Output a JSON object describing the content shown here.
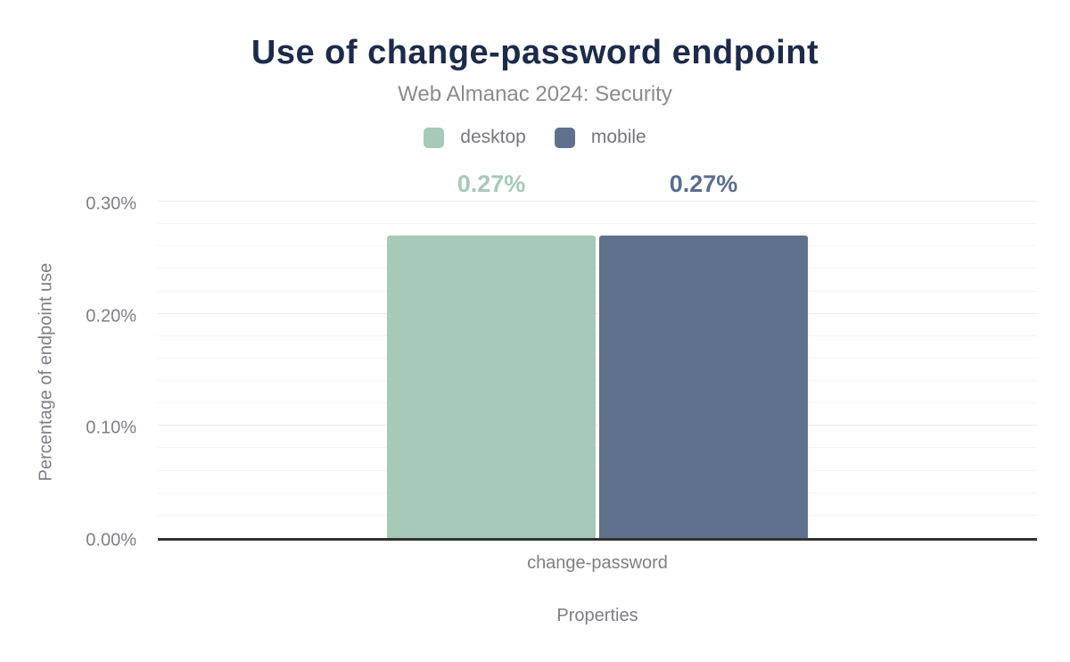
{
  "chart": {
    "title": "Use of change-password endpoint",
    "subtitle": "Web Almanac 2024: Security"
  },
  "colors": {
    "title": "#1c2b4a",
    "subtitle_text": "#8b8b8b",
    "axis_text": "#7e7e86",
    "axis_line": "#333333",
    "gridline_minor": "#f4f4f4",
    "gridline_major": "#ebebeb",
    "desktop": "#a7c9b8",
    "mobile": "#5f718c"
  },
  "chart_data": {
    "type": "bar",
    "title": "Use of change-password endpoint",
    "subtitle": "Web Almanac 2024: Security",
    "categories": [
      "change-password"
    ],
    "series": [
      {
        "name": "desktop",
        "values": [
          0.27
        ],
        "data_labels": [
          "0.27%"
        ],
        "color": "#a7c9b8",
        "label_color": "#a7c9b8"
      },
      {
        "name": "mobile",
        "values": [
          0.27
        ],
        "data_labels": [
          "0.27%"
        ],
        "color": "#5f718c",
        "label_color": "#5a6e8e"
      }
    ],
    "xlabel": "Properties",
    "ylabel": "Percentage of endpoint use",
    "ylim": [
      0,
      0.3
    ],
    "y_major_step": 0.1,
    "y_minor_step": 0.02,
    "y_ticks": [
      {
        "value": 0.0,
        "label": "0.00%"
      },
      {
        "value": 0.1,
        "label": "0.10%"
      },
      {
        "value": 0.2,
        "label": "0.20%"
      },
      {
        "value": 0.3,
        "label": "0.30%"
      }
    ],
    "grid": true,
    "legend_position": "top"
  }
}
